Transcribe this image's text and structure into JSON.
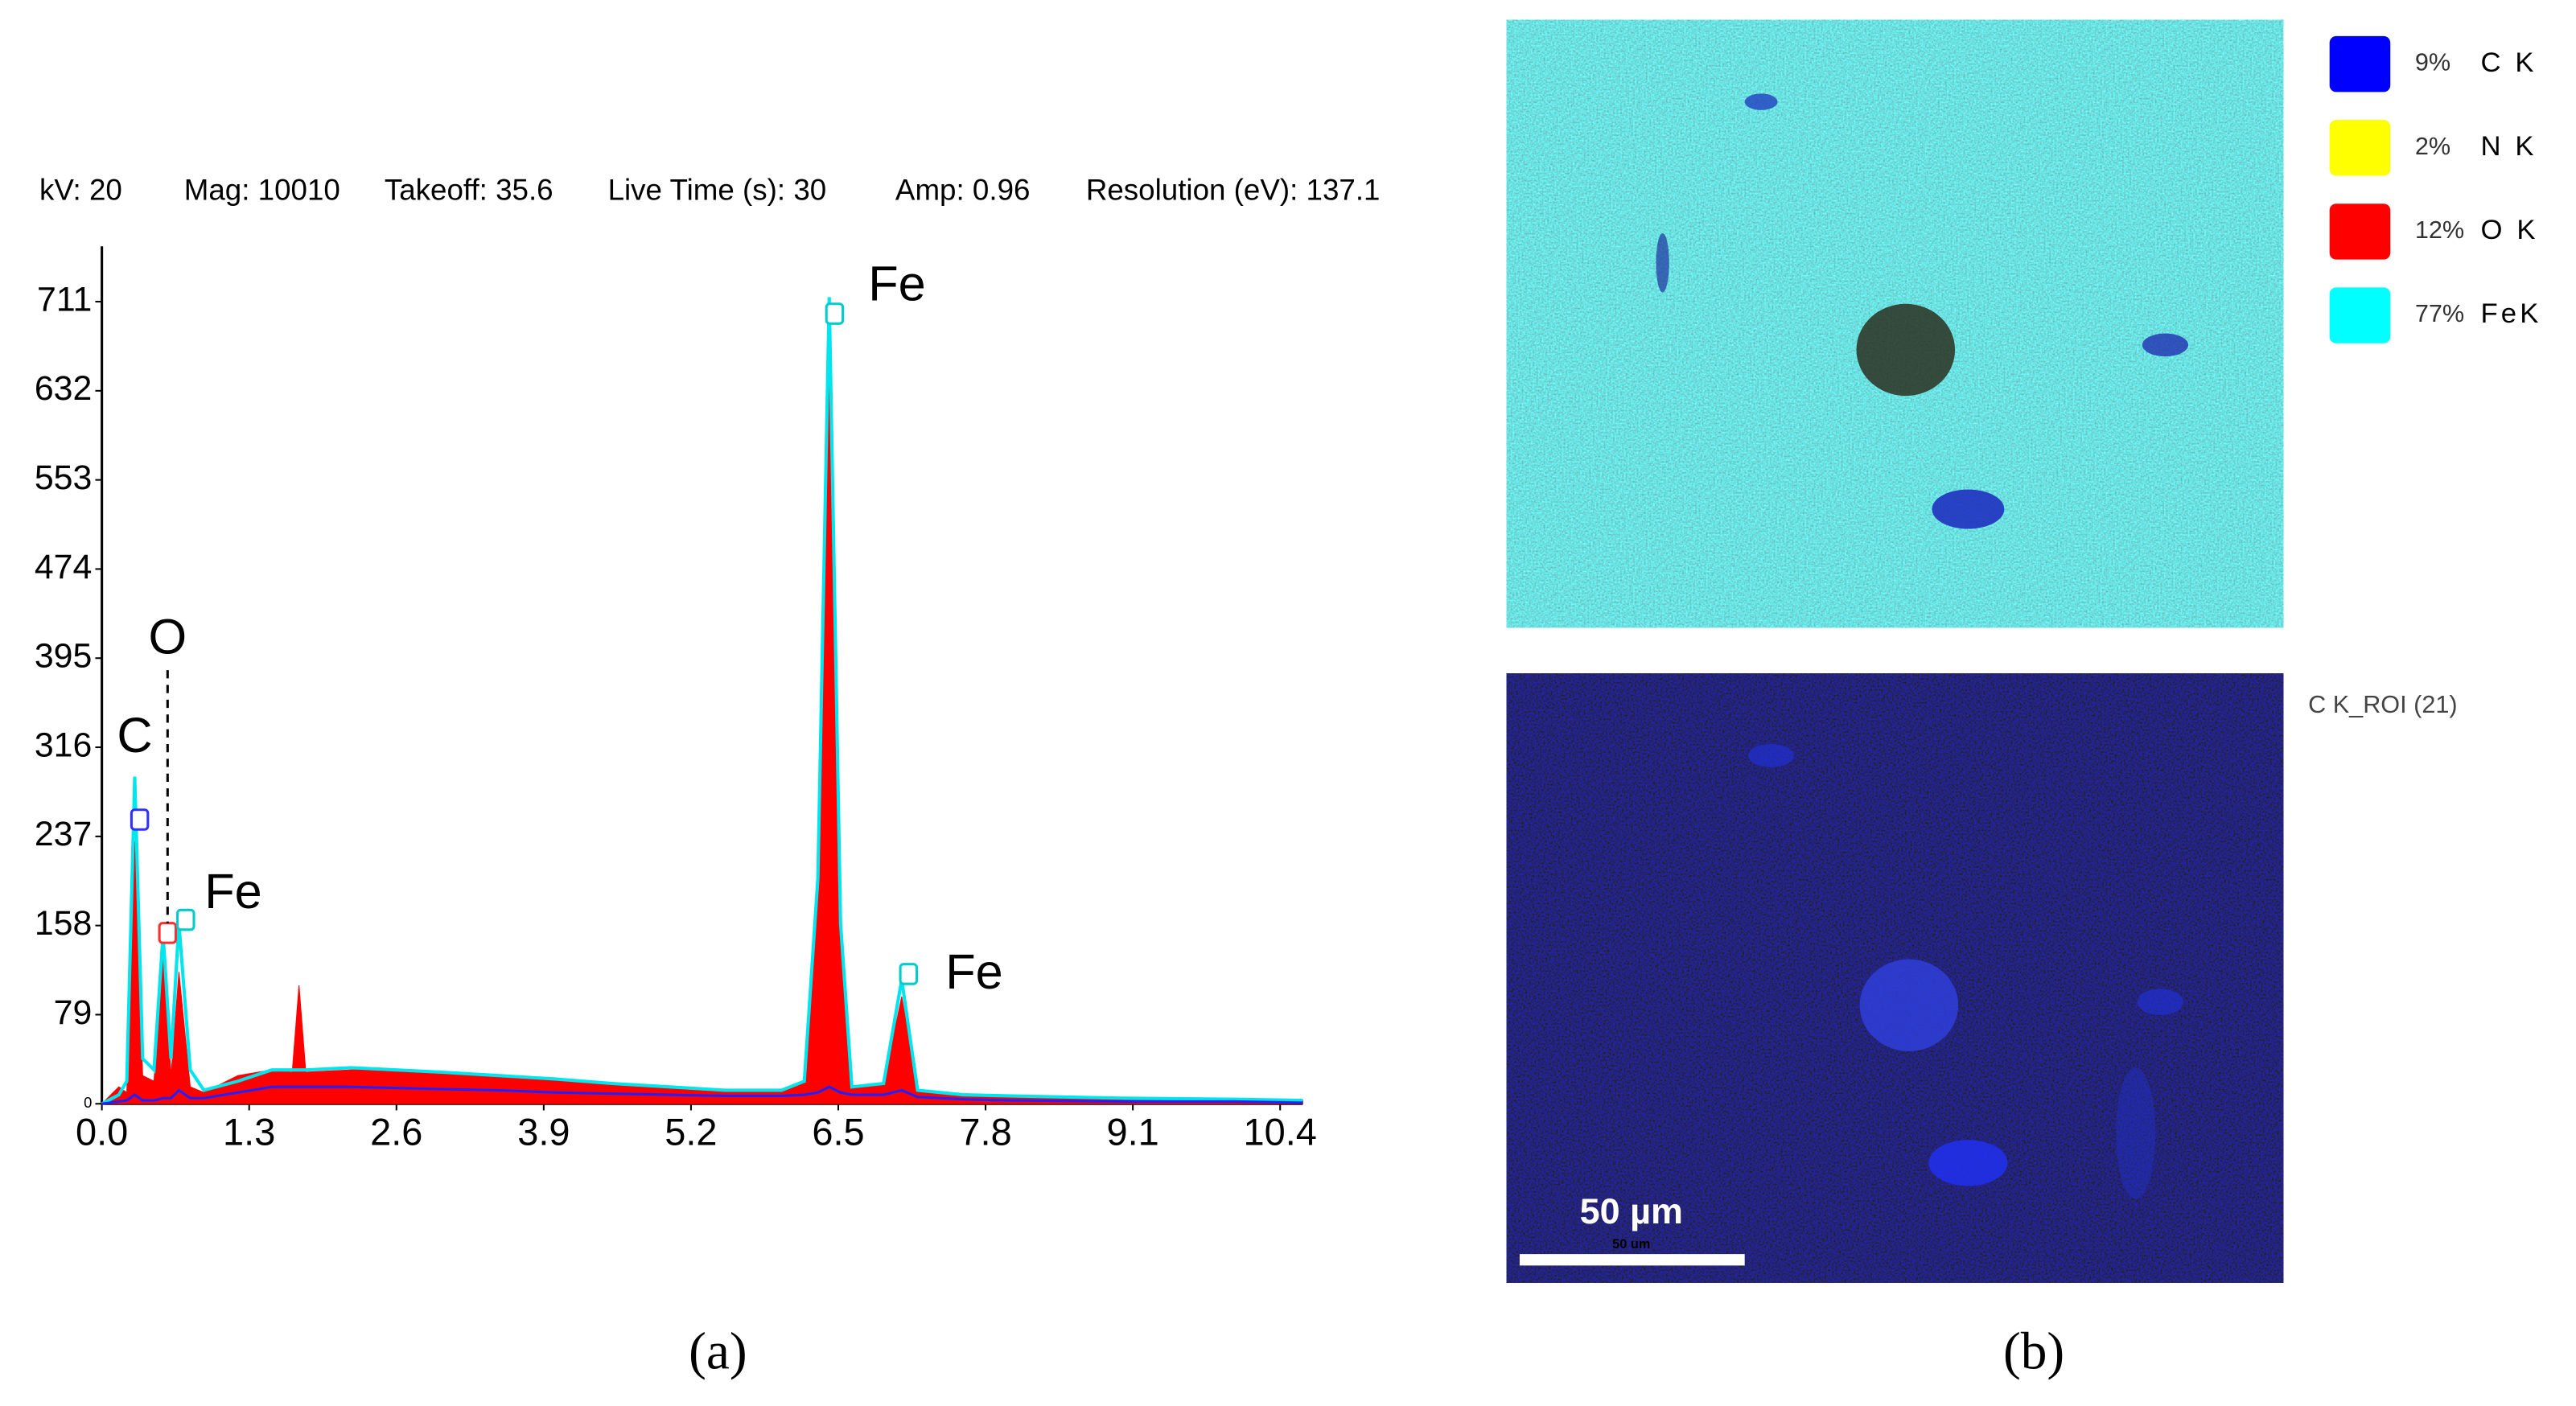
{
  "chart_data": {
    "type": "area",
    "header": [
      "kV: 20",
      "Mag: 10010",
      "Takeoff: 35.6",
      "Live Time (s): 30",
      "Amp: 0.96",
      "Resolution (eV): 137.1"
    ],
    "annotations": [
      "C",
      "O",
      "Fe",
      "Fe",
      "Fe"
    ],
    "x": [
      0,
      0.15,
      0.22,
      0.29,
      0.36,
      0.46,
      0.54,
      0.61,
      0.68,
      0.78,
      0.9,
      1.2,
      1.5,
      1.68,
      1.74,
      1.8,
      2.2,
      2.6,
      3.0,
      3.5,
      4.0,
      4.5,
      5.0,
      5.5,
      6.0,
      6.2,
      6.32,
      6.42,
      6.52,
      6.62,
      6.9,
      7.06,
      7.2,
      7.6,
      8.0,
      9.0,
      10.0,
      10.6
    ],
    "series": [
      {
        "color": "#ff0000",
        "values": [
          0,
          15,
          10,
          233,
          25,
          20,
          139,
          25,
          117,
          15,
          10,
          25,
          30,
          28,
          105,
          28,
          30,
          30,
          28,
          25,
          22,
          18,
          15,
          12,
          12,
          20,
          180,
          700,
          150,
          15,
          18,
          95,
          12,
          8,
          7,
          5,
          4,
          3
        ]
      },
      {
        "color": "#00e5ee",
        "values": [
          0,
          8,
          20,
          290,
          40,
          30,
          150,
          40,
          160,
          30,
          12,
          20,
          30,
          30,
          30,
          30,
          32,
          30,
          28,
          25,
          22,
          18,
          15,
          12,
          12,
          20,
          200,
          715,
          160,
          15,
          18,
          110,
          12,
          8,
          7,
          5,
          4,
          3
        ]
      },
      {
        "color": "#2020ff",
        "values": [
          0,
          2,
          3,
          8,
          3,
          3,
          5,
          5,
          12,
          5,
          5,
          10,
          15,
          15,
          15,
          15,
          15,
          14,
          13,
          12,
          10,
          9,
          8,
          7,
          7,
          8,
          10,
          15,
          10,
          8,
          8,
          12,
          6,
          4,
          3,
          2,
          2,
          1
        ]
      }
    ],
    "xlim": [
      0,
      10.6
    ],
    "xticks": [
      {
        "value": 0,
        "label": "0.0"
      },
      1.3,
      2.6,
      3.9,
      5.2,
      6.5,
      7.8,
      9.1,
      10.4
    ],
    "ylim": [
      0,
      760
    ],
    "yticks": [
      0,
      79,
      158,
      237,
      316,
      395,
      474,
      553,
      632,
      711
    ],
    "caption": "(a)"
  },
  "panel_b": {
    "legend": [
      {
        "percent": "9%",
        "element": "C K",
        "color": "#0000ff"
      },
      {
        "percent": "2%",
        "element": "N K",
        "color": "#ffff00"
      },
      {
        "percent": "12%",
        "element": "O K",
        "color": "#ff0000"
      },
      {
        "percent": "77%",
        "element": "FeK",
        "color": "#00ffff"
      }
    ],
    "roi_label": "C K_ROI (21)",
    "scale_text": "50 µm",
    "scale_small": "50 um",
    "caption": "(b)"
  }
}
